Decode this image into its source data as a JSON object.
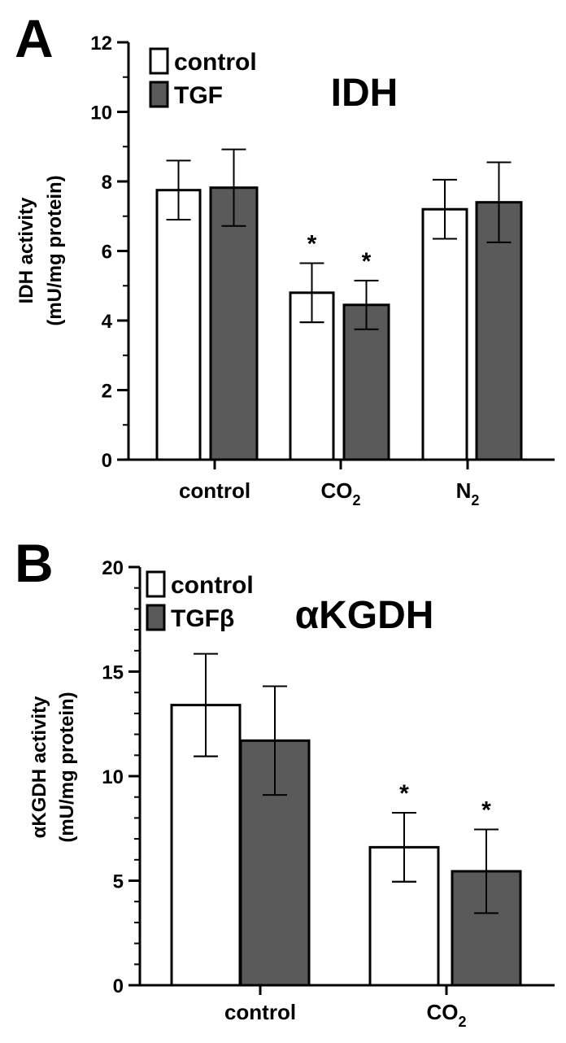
{
  "chart_data": [
    {
      "type": "bar",
      "panel": "A",
      "title": "IDH",
      "ylabel_line1": "IDH activity",
      "ylabel_line2": "(mU/mg protein)",
      "categories": [
        "control",
        "CO2",
        "N2"
      ],
      "category_labels": [
        {
          "main": "control",
          "sub": ""
        },
        {
          "main": "CO",
          "sub": "2"
        },
        {
          "main": "N",
          "sub": "2"
        }
      ],
      "ylim": [
        0,
        12
      ],
      "yticks": [
        0,
        2,
        4,
        6,
        8,
        10,
        12
      ],
      "series": [
        {
          "name": "control",
          "values": [
            7.75,
            4.8,
            7.2
          ],
          "errors": [
            0.85,
            0.85,
            0.85
          ],
          "significant": [
            false,
            true,
            false
          ]
        },
        {
          "name": "TGF",
          "values": [
            7.82,
            4.45,
            7.4
          ],
          "errors": [
            1.1,
            0.7,
            1.15
          ],
          "significant": [
            false,
            true,
            false
          ]
        }
      ],
      "legend": "top-left",
      "grid": false
    },
    {
      "type": "bar",
      "panel": "B",
      "title": "αKGDH",
      "ylabel_line1": "αKGDH activity",
      "ylabel_line2": "(mU/mg protein)",
      "categories": [
        "control",
        "CO2"
      ],
      "category_labels": [
        {
          "main": "control",
          "sub": ""
        },
        {
          "main": "CO",
          "sub": "2"
        }
      ],
      "ylim": [
        0,
        20
      ],
      "yticks": [
        0,
        5,
        10,
        15,
        20
      ],
      "series": [
        {
          "name": "control",
          "values": [
            13.4,
            6.6
          ],
          "errors": [
            2.45,
            1.65
          ],
          "significant": [
            false,
            true
          ]
        },
        {
          "name": "TGFβ",
          "values": [
            11.7,
            5.45
          ],
          "errors": [
            2.6,
            2.0
          ],
          "significant": [
            false,
            true
          ]
        }
      ],
      "legend": "top-left",
      "grid": false
    }
  ],
  "colors": {
    "control_fill": "#ffffff",
    "treated_fill": "#5a5a5a",
    "stroke": "#000000"
  },
  "significance_mark": "*"
}
